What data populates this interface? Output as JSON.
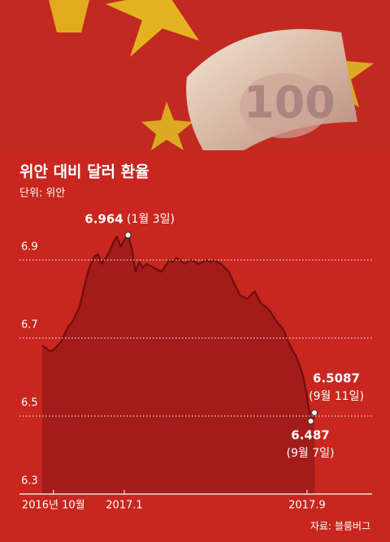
{
  "chart_data": {
    "type": "area",
    "title": "위안 대비 달러 환율",
    "subtitle": "단위: 위안",
    "source": "자료: 블룸버그",
    "categories": [
      null,
      null,
      null,
      "2016년 10월",
      null,
      null,
      null,
      null,
      null,
      null,
      null,
      null,
      null,
      null,
      null,
      null,
      null,
      null,
      null,
      null,
      null,
      null,
      "2017.1",
      null,
      null,
      null,
      null,
      null,
      null,
      null,
      null,
      null,
      null,
      null,
      null,
      null,
      null,
      null,
      null,
      null,
      null,
      null,
      null,
      null,
      null,
      null,
      null,
      null,
      null,
      null,
      null,
      null,
      null,
      null,
      null,
      null,
      null,
      null,
      null,
      null,
      null,
      null,
      null,
      null,
      null,
      null,
      null,
      null,
      null,
      null,
      null,
      "2017.9",
      null,
      null
    ],
    "values": [
      6.68,
      6.675,
      6.665,
      6.67,
      6.68,
      6.69,
      6.71,
      6.73,
      6.74,
      6.76,
      6.78,
      6.82,
      6.86,
      6.89,
      6.91,
      6.915,
      6.89,
      6.905,
      6.92,
      6.945,
      6.96,
      6.935,
      6.95,
      6.964,
      6.93,
      6.87,
      6.895,
      6.88,
      6.89,
      6.885,
      6.88,
      6.875,
      6.87,
      6.885,
      6.9,
      6.895,
      6.905,
      6.9,
      6.89,
      6.895,
      6.9,
      6.895,
      6.89,
      6.895,
      6.9,
      6.895,
      6.9,
      6.895,
      6.89,
      6.88,
      6.87,
      6.85,
      6.83,
      6.81,
      6.805,
      6.8,
      6.81,
      6.82,
      6.8,
      6.785,
      6.78,
      6.77,
      6.755,
      6.74,
      6.73,
      6.715,
      6.69,
      6.67,
      6.655,
      6.63,
      6.6,
      6.55,
      6.487,
      6.5087
    ],
    "annotations": [
      "(1월 3일)",
      "(9월 7일)",
      "(9월 11일)"
    ],
    "ylim": [
      6.3,
      7.0
    ],
    "yticks": [
      6.3,
      6.5,
      6.7,
      6.9
    ],
    "grid": true,
    "color": "#a31c1a",
    "line_color": "#6e0e0e"
  }
}
